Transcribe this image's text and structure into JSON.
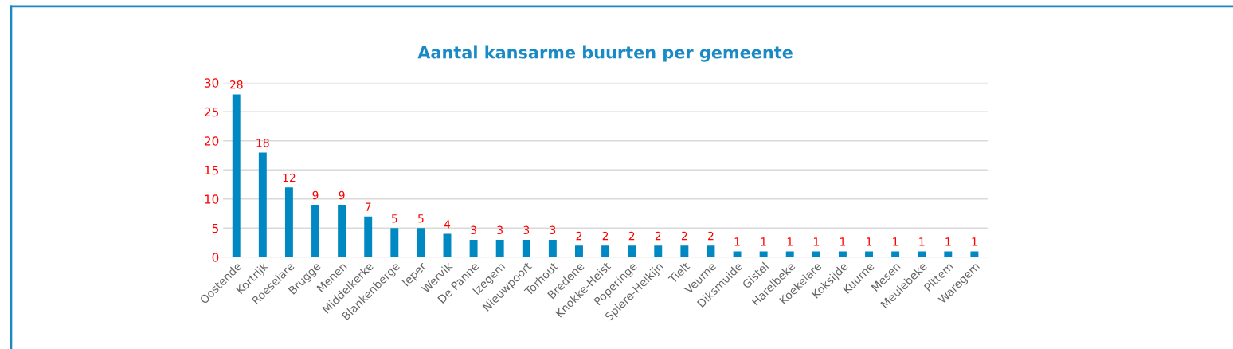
{
  "chart_data": {
    "type": "bar",
    "title": "Aantal kansarme buurten per gemeente",
    "categories": [
      "Oostende",
      "Kortrijk",
      "Roeselare",
      "Brugge",
      "Menen",
      "Middelkerke",
      "Blankenberge",
      "Ieper",
      "Wervik",
      "De Panne",
      "Izegem",
      "Nieuwpoort",
      "Torhout",
      "Bredene",
      "Knokke-Heist",
      "Poperinge",
      "Spiere-Helkijn",
      "Tielt",
      "Veurne",
      "Diksmuide",
      "Gistel",
      "Harelbeke",
      "Koekelare",
      "Koksijde",
      "Kuurne",
      "Mesen",
      "Meulebeke",
      "Pittem",
      "Waregem"
    ],
    "values": [
      28,
      18,
      12,
      9,
      9,
      7,
      5,
      5,
      4,
      3,
      3,
      3,
      3,
      2,
      2,
      2,
      2,
      2,
      2,
      1,
      1,
      1,
      1,
      1,
      1,
      1,
      1,
      1,
      1
    ],
    "color": "#0088c2",
    "ylim": [
      0,
      30
    ],
    "yticks": [
      0,
      5,
      10,
      15,
      20,
      25,
      30
    ],
    "grid": "y",
    "data_labels": true,
    "legend": false
  }
}
